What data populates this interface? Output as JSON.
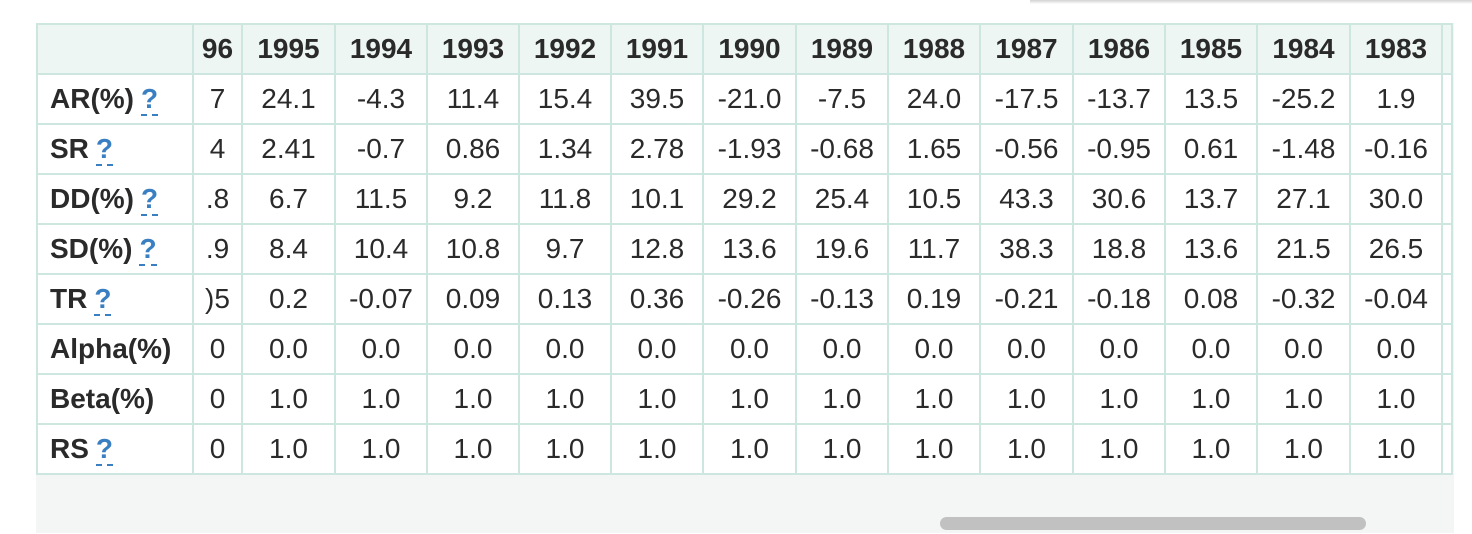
{
  "table": {
    "years": [
      "96",
      "1995",
      "1994",
      "1993",
      "1992",
      "1991",
      "1990",
      "1989",
      "1988",
      "1987",
      "1986",
      "1985",
      "1984",
      "1983"
    ],
    "help_glyph": "?",
    "rows": [
      {
        "label": "AR(%)",
        "help": true,
        "values": [
          "7",
          "24.1",
          "-4.3",
          "11.4",
          "15.4",
          "39.5",
          "-21.0",
          "-7.5",
          "24.0",
          "-17.5",
          "-13.7",
          "13.5",
          "-25.2",
          "1.9"
        ]
      },
      {
        "label": "SR",
        "help": true,
        "values": [
          "4",
          "2.41",
          "-0.7",
          "0.86",
          "1.34",
          "2.78",
          "-1.93",
          "-0.68",
          "1.65",
          "-0.56",
          "-0.95",
          "0.61",
          "-1.48",
          "-0.16"
        ]
      },
      {
        "label": "DD(%)",
        "help": true,
        "values": [
          ".8",
          "6.7",
          "11.5",
          "9.2",
          "11.8",
          "10.1",
          "29.2",
          "25.4",
          "10.5",
          "43.3",
          "30.6",
          "13.7",
          "27.1",
          "30.0"
        ]
      },
      {
        "label": "SD(%)",
        "help": true,
        "values": [
          ".9",
          "8.4",
          "10.4",
          "10.8",
          "9.7",
          "12.8",
          "13.6",
          "19.6",
          "11.7",
          "38.3",
          "18.8",
          "13.6",
          "21.5",
          "26.5"
        ]
      },
      {
        "label": "TR",
        "help": true,
        "values": [
          ")5",
          "0.2",
          "-0.07",
          "0.09",
          "0.13",
          "0.36",
          "-0.26",
          "-0.13",
          "0.19",
          "-0.21",
          "-0.18",
          "0.08",
          "-0.32",
          "-0.04"
        ]
      },
      {
        "label": "Alpha(%)",
        "help": false,
        "values": [
          "0",
          "0.0",
          "0.0",
          "0.0",
          "0.0",
          "0.0",
          "0.0",
          "0.0",
          "0.0",
          "0.0",
          "0.0",
          "0.0",
          "0.0",
          "0.0"
        ]
      },
      {
        "label": "Beta(%)",
        "help": false,
        "values": [
          "0",
          "1.0",
          "1.0",
          "1.0",
          "1.0",
          "1.0",
          "1.0",
          "1.0",
          "1.0",
          "1.0",
          "1.0",
          "1.0",
          "1.0",
          "1.0"
        ]
      },
      {
        "label": "RS",
        "help": true,
        "values": [
          "0",
          "1.0",
          "1.0",
          "1.0",
          "1.0",
          "1.0",
          "1.0",
          "1.0",
          "1.0",
          "1.0",
          "1.0",
          "1.0",
          "1.0",
          "1.0"
        ]
      }
    ]
  },
  "scrollbar": {
    "visible": true
  }
}
